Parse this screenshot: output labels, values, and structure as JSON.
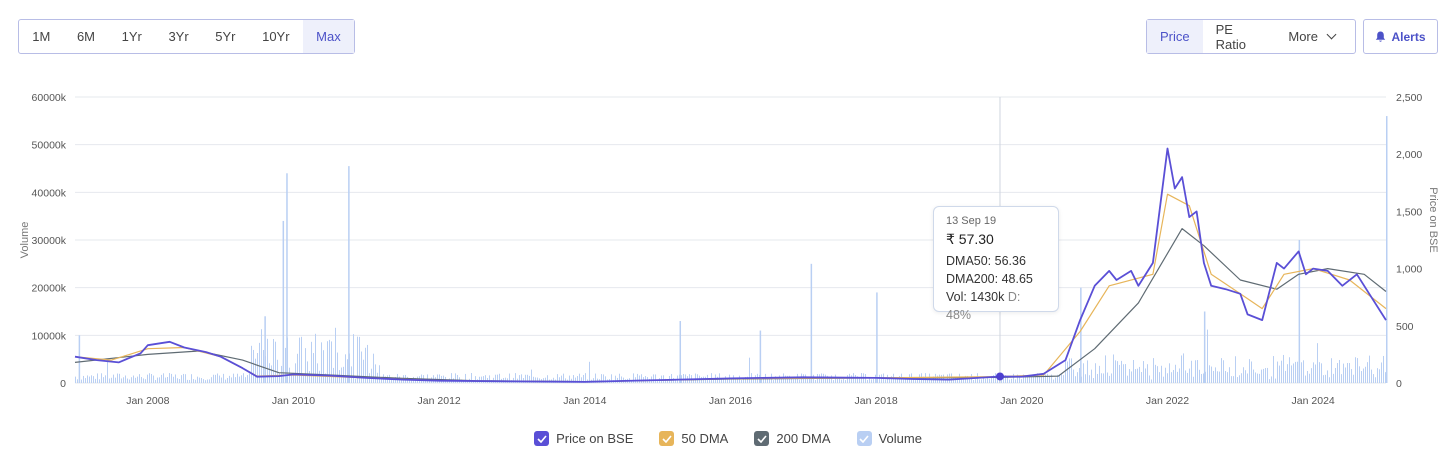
{
  "range_buttons": [
    {
      "label": "1M",
      "active": false
    },
    {
      "label": "6M",
      "active": false
    },
    {
      "label": "1Yr",
      "active": false
    },
    {
      "label": "3Yr",
      "active": false
    },
    {
      "label": "5Yr",
      "active": false
    },
    {
      "label": "10Yr",
      "active": false
    },
    {
      "label": "Max",
      "active": true
    }
  ],
  "view_buttons": {
    "price": "Price",
    "pe": "PE Ratio",
    "more": "More"
  },
  "alerts_label": "Alerts",
  "icons": {
    "alerts": "bell-icon",
    "more": "chevron-down-icon"
  },
  "tooltip": {
    "date": "13 Sep 19",
    "price": "₹ 57.30",
    "dma50": "DMA50: 56.36",
    "dma200": "DMA200: 48.65",
    "vol": "Vol: 1430k",
    "delivery": "D: 48%"
  },
  "legend": [
    {
      "label": "Price on BSE",
      "color": "#5a4fd6"
    },
    {
      "label": "50 DMA",
      "color": "#e7b55a"
    },
    {
      "label": "200 DMA",
      "color": "#5f6b73"
    },
    {
      "label": "Volume",
      "color": "#b9cff3"
    }
  ],
  "chart_data": {
    "type": "line",
    "x_ticks": [
      "Jan 2008",
      "Jan 2010",
      "Jan 2012",
      "Jan 2014",
      "Jan 2016",
      "Jan 2018",
      "Jan 2020",
      "Jan 2022",
      "Jan 2024"
    ],
    "x_range": [
      2007.0,
      2025.0
    ],
    "left_axis": {
      "title": "Volume",
      "ticks": [
        "0",
        "10000k",
        "20000k",
        "30000k",
        "40000k",
        "50000k",
        "60000k"
      ],
      "range": [
        0,
        60000
      ]
    },
    "right_axis": {
      "title": "Price on BSE",
      "ticks": [
        "0",
        "500",
        "1,000",
        "1,500",
        "2,000",
        "2,500"
      ],
      "range": [
        0,
        2500
      ]
    },
    "hover_x": 2019.7,
    "series": [
      {
        "name": "Price on BSE",
        "color": "#5a4fd6",
        "points": [
          [
            2007.0,
            230
          ],
          [
            2007.3,
            200
          ],
          [
            2007.6,
            180
          ],
          [
            2007.9,
            260
          ],
          [
            2008.0,
            330
          ],
          [
            2008.3,
            360
          ],
          [
            2008.5,
            310
          ],
          [
            2008.8,
            270
          ],
          [
            2009.0,
            230
          ],
          [
            2009.3,
            130
          ],
          [
            2009.5,
            55
          ],
          [
            2009.8,
            60
          ],
          [
            2010.0,
            75
          ],
          [
            2010.5,
            65
          ],
          [
            2011.0,
            45
          ],
          [
            2011.5,
            30
          ],
          [
            2012.0,
            20
          ],
          [
            2013.0,
            14
          ],
          [
            2014.0,
            10
          ],
          [
            2015.0,
            25
          ],
          [
            2016.0,
            40
          ],
          [
            2017.0,
            50
          ],
          [
            2018.0,
            45
          ],
          [
            2018.5,
            35
          ],
          [
            2019.0,
            30
          ],
          [
            2019.7,
            57
          ],
          [
            2020.0,
            55
          ],
          [
            2020.3,
            80
          ],
          [
            2020.6,
            200
          ],
          [
            2020.8,
            550
          ],
          [
            2021.0,
            850
          ],
          [
            2021.2,
            980
          ],
          [
            2021.3,
            900
          ],
          [
            2021.5,
            980
          ],
          [
            2021.6,
            850
          ],
          [
            2021.8,
            1050
          ],
          [
            2022.0,
            2050
          ],
          [
            2022.1,
            1700
          ],
          [
            2022.2,
            1800
          ],
          [
            2022.3,
            1450
          ],
          [
            2022.4,
            1500
          ],
          [
            2022.5,
            1050
          ],
          [
            2022.6,
            850
          ],
          [
            2022.8,
            820
          ],
          [
            2023.0,
            780
          ],
          [
            2023.1,
            600
          ],
          [
            2023.3,
            550
          ],
          [
            2023.5,
            1050
          ],
          [
            2023.6,
            1000
          ],
          [
            2023.8,
            1150
          ],
          [
            2023.9,
            950
          ],
          [
            2024.0,
            1000
          ],
          [
            2024.2,
            980
          ],
          [
            2024.4,
            850
          ],
          [
            2024.6,
            950
          ],
          [
            2024.8,
            750
          ],
          [
            2025.0,
            550
          ]
        ]
      },
      {
        "name": "50 DMA",
        "color": "#e7b55a",
        "points": [
          [
            2007.0,
            230
          ],
          [
            2007.5,
            200
          ],
          [
            2008.0,
            300
          ],
          [
            2008.5,
            310
          ],
          [
            2009.0,
            230
          ],
          [
            2009.5,
            60
          ],
          [
            2010.0,
            70
          ],
          [
            2011.0,
            45
          ],
          [
            2012.0,
            20
          ],
          [
            2014.0,
            10
          ],
          [
            2016.0,
            38
          ],
          [
            2018.0,
            45
          ],
          [
            2019.7,
            56
          ],
          [
            2020.3,
            70
          ],
          [
            2020.8,
            450
          ],
          [
            2021.2,
            850
          ],
          [
            2021.8,
            950
          ],
          [
            2022.0,
            1650
          ],
          [
            2022.3,
            1550
          ],
          [
            2022.6,
            950
          ],
          [
            2023.0,
            780
          ],
          [
            2023.3,
            650
          ],
          [
            2023.6,
            950
          ],
          [
            2024.0,
            1000
          ],
          [
            2024.5,
            900
          ],
          [
            2025.0,
            650
          ]
        ]
      },
      {
        "name": "200 DMA",
        "color": "#5f6b73",
        "points": [
          [
            2007.0,
            180
          ],
          [
            2008.0,
            250
          ],
          [
            2008.7,
            280
          ],
          [
            2009.3,
            200
          ],
          [
            2009.8,
            90
          ],
          [
            2010.5,
            70
          ],
          [
            2011.5,
            40
          ],
          [
            2012.5,
            20
          ],
          [
            2014.0,
            12
          ],
          [
            2016.0,
            35
          ],
          [
            2018.0,
            45
          ],
          [
            2019.7,
            49
          ],
          [
            2020.5,
            60
          ],
          [
            2021.0,
            300
          ],
          [
            2021.6,
            700
          ],
          [
            2022.2,
            1350
          ],
          [
            2022.5,
            1200
          ],
          [
            2023.0,
            900
          ],
          [
            2023.5,
            820
          ],
          [
            2023.8,
            950
          ],
          [
            2024.2,
            1000
          ],
          [
            2024.7,
            950
          ],
          [
            2025.0,
            800
          ]
        ]
      }
    ],
    "volume_spikes_k": [
      [
        2007.05,
        10000
      ],
      [
        2009.6,
        14000
      ],
      [
        2009.85,
        34000
      ],
      [
        2009.9,
        44000
      ],
      [
        2010.75,
        45500
      ],
      [
        2015.3,
        13000
      ],
      [
        2016.4,
        11000
      ],
      [
        2017.1,
        25000
      ],
      [
        2018.0,
        19000
      ],
      [
        2020.8,
        20000
      ],
      [
        2022.5,
        15000
      ],
      [
        2023.8,
        30000
      ],
      [
        2025.0,
        56000
      ]
    ]
  }
}
